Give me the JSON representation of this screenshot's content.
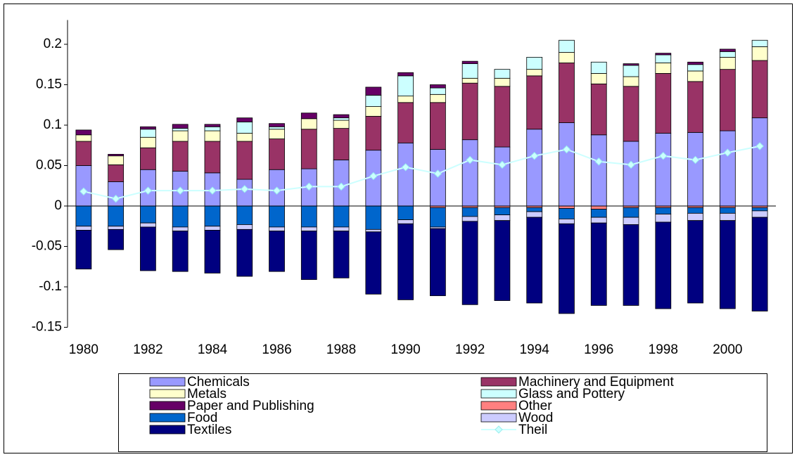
{
  "chart_data": {
    "type": "bar",
    "stacked": true,
    "categories": [
      "1980",
      null,
      "1982",
      null,
      "1984",
      null,
      "1986",
      null,
      "1988",
      null,
      "1990",
      null,
      "1992",
      null,
      "1994",
      null,
      "1996",
      null,
      "1998",
      null,
      "2000",
      null
    ],
    "ylim": [
      -0.15,
      0.23
    ],
    "yticks": [
      -0.15,
      -0.1,
      -0.05,
      {
        "value": 0,
        "label": "0"
      },
      0.05,
      0.1,
      0.15,
      0.2
    ],
    "series": [
      {
        "name": "Chemicals",
        "color": "#9999ff",
        "values": [
          0.05,
          0.03,
          0.045,
          0.043,
          0.041,
          0.033,
          0.045,
          0.046,
          0.057,
          0.069,
          0.078,
          0.07,
          0.082,
          0.073,
          0.095,
          0.103,
          0.088,
          0.08,
          0.09,
          0.091,
          0.093,
          0.109
        ]
      },
      {
        "name": "Machinery and Equipment",
        "color": "#993366",
        "values": [
          0.03,
          0.021,
          0.027,
          0.037,
          0.039,
          0.047,
          0.038,
          0.049,
          0.039,
          0.042,
          0.05,
          0.058,
          0.07,
          0.075,
          0.066,
          0.074,
          0.063,
          0.068,
          0.074,
          0.063,
          0.076,
          0.071
        ]
      },
      {
        "name": "Metals",
        "color": "#ffffcc",
        "values": [
          0.008,
          0.011,
          0.013,
          0.013,
          0.013,
          0.01,
          0.012,
          0.013,
          0.01,
          0.012,
          0.008,
          0.01,
          0.006,
          0.01,
          0.008,
          0.013,
          0.013,
          0.012,
          0.013,
          0.013,
          0.015,
          0.017
        ]
      },
      {
        "name": "Glass and Pottery",
        "color": "#ccffff",
        "values": [
          0,
          0,
          0.01,
          0.003,
          0.005,
          0.014,
          0.003,
          0,
          0.003,
          0.014,
          0.025,
          0.008,
          0.018,
          0.011,
          0.015,
          0.015,
          0.014,
          0.014,
          0.01,
          0.008,
          0.007,
          0.008
        ]
      },
      {
        "name": "Paper and Publishing",
        "color": "#660066",
        "values": [
          0.006,
          0.002,
          0.003,
          0.005,
          0.003,
          0.005,
          0.004,
          0.007,
          0.004,
          0.01,
          0.004,
          0.004,
          0.003,
          0,
          0,
          0,
          0,
          0.002,
          0.002,
          0.003,
          0.003,
          0
        ]
      },
      {
        "name": "Other",
        "color": "#ff8080",
        "values": [
          0,
          0,
          0,
          0,
          0,
          0,
          0,
          0,
          0,
          0,
          0,
          -0.002,
          -0.002,
          -0.002,
          -0.002,
          -0.003,
          -0.004,
          -0.002,
          -0.002,
          -0.002,
          -0.002,
          -0.002
        ]
      },
      {
        "name": "Food",
        "color": "#0066cc",
        "values": [
          -0.025,
          -0.025,
          -0.021,
          -0.026,
          -0.025,
          -0.023,
          -0.026,
          -0.026,
          -0.026,
          -0.029,
          -0.017,
          -0.024,
          -0.011,
          -0.009,
          -0.005,
          -0.013,
          -0.01,
          -0.012,
          -0.008,
          -0.007,
          -0.007,
          -0.004
        ]
      },
      {
        "name": "Wood",
        "color": "#ccccff",
        "values": [
          -0.005,
          -0.004,
          -0.005,
          -0.005,
          -0.005,
          -0.006,
          -0.005,
          -0.005,
          -0.005,
          -0.003,
          -0.005,
          -0.002,
          -0.006,
          -0.007,
          -0.007,
          -0.006,
          -0.007,
          -0.009,
          -0.01,
          -0.009,
          -0.009,
          -0.008
        ]
      },
      {
        "name": "Textiles",
        "color": "#000080",
        "values": [
          -0.048,
          -0.025,
          -0.054,
          -0.05,
          -0.053,
          -0.058,
          -0.05,
          -0.06,
          -0.058,
          -0.077,
          -0.094,
          -0.083,
          -0.103,
          -0.099,
          -0.106,
          -0.111,
          -0.102,
          -0.1,
          -0.107,
          -0.102,
          -0.109,
          -0.116
        ]
      },
      {
        "name": "Theil",
        "type": "line",
        "color": "#ccffff",
        "values": [
          0.018,
          0.009,
          0.019,
          0.019,
          0.019,
          0.021,
          0.019,
          0.024,
          0.024,
          0.037,
          0.048,
          0.04,
          0.057,
          0.051,
          0.062,
          0.07,
          0.055,
          0.051,
          0.062,
          0.057,
          0.066,
          0.074
        ]
      }
    ]
  }
}
